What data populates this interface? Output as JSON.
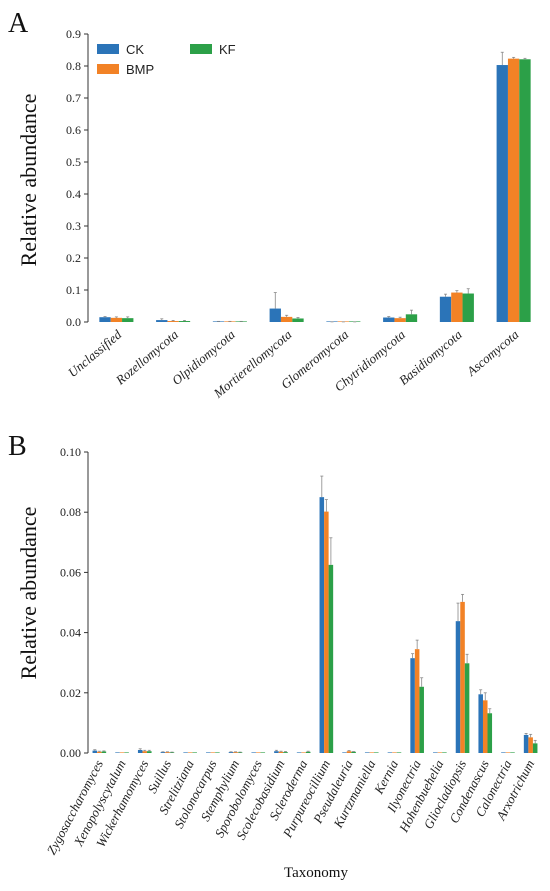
{
  "colors": {
    "CK": "#2b74b8",
    "BMP": "#f28226",
    "KF": "#2ca048"
  },
  "chart_data": [
    {
      "panel": "A",
      "type": "bar",
      "ylabel": "Relative abundance",
      "xlabel": "",
      "ylim": [
        0,
        0.9
      ],
      "yticks": [
        "0.0",
        "0.1",
        "0.2",
        "0.3",
        "0.4",
        "0.5",
        "0.6",
        "0.7",
        "0.8",
        "0.9"
      ],
      "legend": {
        "placement": "top-left",
        "entries": [
          "CK",
          "BMP",
          "KF"
        ]
      },
      "categories": [
        "Unclassified",
        "Rozellomycota",
        "Olpidiomycota",
        "Mortierellomycota",
        "Glomeromycota",
        "Chytridiomycota",
        "Basidiomycota",
        "Ascomycota"
      ],
      "series": [
        {
          "name": "CK",
          "values": [
            0.015,
            0.006,
            0.001,
            0.042,
            0.0002,
            0.014,
            0.079,
            0.803
          ],
          "errors": [
            0.002,
            0.004,
            0.001,
            0.05,
            0.0002,
            0.003,
            0.008,
            0.04
          ]
        },
        {
          "name": "BMP",
          "values": [
            0.013,
            0.003,
            0.001,
            0.016,
            0.0002,
            0.012,
            0.092,
            0.823
          ],
          "errors": [
            0.003,
            0.002,
            0.001,
            0.005,
            0.0002,
            0.003,
            0.006,
            0.004
          ]
        },
        {
          "name": "KF",
          "values": [
            0.012,
            0.003,
            0.001,
            0.011,
            0.0002,
            0.024,
            0.089,
            0.821
          ],
          "errors": [
            0.004,
            0.002,
            0.001,
            0.003,
            0.0002,
            0.013,
            0.015,
            0.003
          ]
        }
      ]
    },
    {
      "panel": "B",
      "type": "bar",
      "ylabel": "Relative abundance",
      "xlabel": "Taxonomy",
      "ylim": [
        0,
        0.1
      ],
      "yticks": [
        "0.00",
        "0.02",
        "0.04",
        "0.06",
        "0.08",
        "0.10"
      ],
      "categories": [
        "Zygosaccharomyces",
        "Xenopolyscytalum",
        "Wickerhamomyces",
        "Suillus",
        "Strelitziana",
        "Stolonocarpus",
        "Stemphylium",
        "Sporobolomyces",
        "Scolecobasidium",
        "Scleroderma",
        "Purpureocillium",
        "Pseudaleuria",
        "Kurtzmaniella",
        "Kernia",
        "Ilyonectria",
        "Hohenbuehelia",
        "Gliocladiopsis",
        "Condenascus",
        "Calonectria",
        "Arxotrichum"
      ],
      "series": [
        {
          "name": "CK",
          "values": [
            0.0008,
            0.0001,
            0.001,
            0.0003,
            0.0002,
            0.0001,
            0.0003,
            0.0001,
            0.0006,
            0.0002,
            0.085,
            0.0002,
            0.0001,
            0.0001,
            0.0315,
            0.0001,
            0.0438,
            0.0195,
            0.0001,
            0.006
          ],
          "errors": [
            0.0003,
            0,
            0.0004,
            0.0001,
            0,
            0,
            0.0001,
            0,
            0.0003,
            0,
            0.007,
            0,
            0,
            0,
            0.0015,
            0,
            0.006,
            0.0015,
            0,
            0.0005
          ]
        },
        {
          "name": "BMP",
          "values": [
            0.0004,
            0.0001,
            0.0006,
            0.0003,
            0.0002,
            0.0001,
            0.0003,
            0.0001,
            0.0004,
            0.0002,
            0.0802,
            0.0006,
            0.0001,
            0.0001,
            0.0345,
            0.0001,
            0.0502,
            0.0175,
            0.0001,
            0.0052
          ],
          "errors": [
            0.0002,
            0,
            0.0003,
            0.0001,
            0,
            0,
            0.0001,
            0,
            0.0002,
            0,
            0.004,
            0.0002,
            0,
            0,
            0.003,
            0,
            0.0025,
            0.0025,
            0,
            0.001
          ]
        },
        {
          "name": "KF",
          "values": [
            0.0005,
            0.0001,
            0.0006,
            0.0002,
            0.0002,
            0.0001,
            0.0002,
            0.0001,
            0.0003,
            0.0004,
            0.0625,
            0.0004,
            0.0001,
            0.0001,
            0.022,
            0.0001,
            0.0298,
            0.0132,
            0.0001,
            0.0032
          ],
          "errors": [
            0.0002,
            0,
            0.0003,
            0.0001,
            0,
            0,
            0.0001,
            0,
            0.0002,
            0.0002,
            0.009,
            0.0001,
            0,
            0,
            0.003,
            0,
            0.003,
            0.0015,
            0,
            0.001
          ]
        }
      ]
    }
  ]
}
